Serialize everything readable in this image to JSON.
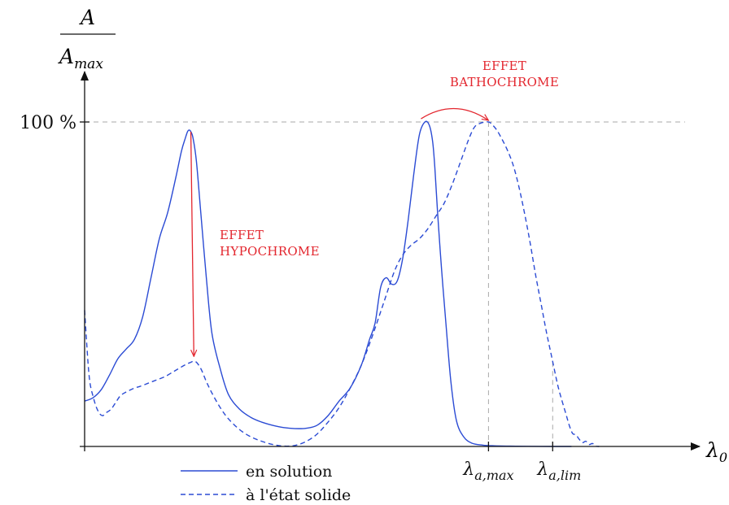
{
  "chart_data": {
    "type": "line",
    "y_axis": {
      "label_numerator": "A",
      "label_denominator": "A",
      "label_denominator_sub": "max",
      "tick_label": "100 %",
      "tick_value": 100,
      "ylim": [
        0,
        140
      ]
    },
    "x_axis": {
      "label": "λ",
      "label_sub": "0",
      "xlim": [
        0,
        100
      ],
      "ticks": [
        {
          "base": "λ",
          "sub": "a,max",
          "value": 73.0
        },
        {
          "base": "λ",
          "sub": "a,lim",
          "value": 84.6
        }
      ]
    },
    "colors": {
      "curve": "#2b4bd4",
      "annotation": "#e3262e",
      "guide": "#aaaaaa",
      "axis": "#111111"
    },
    "series": [
      {
        "name": "en solution",
        "style": "solid",
        "x": [
          0,
          1.5,
          3.0,
          4.5,
          6.0,
          7.5,
          9.0,
          10.5,
          12.0,
          13.5,
          15.0,
          16.5,
          17.5,
          18.2,
          18.6,
          18.9,
          19.2,
          19.6,
          20.2,
          21.0,
          22.0,
          23.0,
          24.5,
          26.0,
          28.0,
          30.0,
          32.0,
          34.0,
          36.0,
          38.0,
          40.0,
          42.0,
          44.0,
          46.0,
          48.0,
          50.0,
          51.5,
          52.5,
          53.5,
          54.5,
          55.5,
          56.5,
          57.5,
          58.5,
          59.5,
          60.5,
          61.5,
          62.3,
          62.9,
          63.3,
          63.8,
          64.5,
          65.3,
          66.2,
          67.2,
          68.5,
          70.0,
          72.0,
          74.0,
          77.0,
          80.0,
          85.0,
          88.0
        ],
        "y": [
          14,
          15,
          17.5,
          22,
          27,
          30,
          33,
          40,
          52,
          64,
          72,
          83,
          91,
          95,
          97,
          97.5,
          97,
          95,
          88,
          72,
          52,
          35,
          24,
          16,
          11.5,
          9,
          7.5,
          6.5,
          5.8,
          5.5,
          5.6,
          6.5,
          9.5,
          14,
          18,
          25,
          33,
          38,
          49,
          52,
          50,
          51,
          58,
          70,
          84,
          96,
          100,
          99,
          94,
          86,
          72,
          55,
          38,
          20,
          8,
          3,
          1,
          0.4,
          0.2,
          0.1,
          0.05,
          0,
          0
        ]
      },
      {
        "name": "à l'état solide",
        "style": "dashed",
        "x": [
          0,
          0.8,
          1.6,
          2.4,
          3.2,
          4.0,
          4.8,
          5.6,
          6.4,
          7.2,
          8.0,
          9.0,
          10.0,
          11.5,
          13.0,
          14.5,
          16.0,
          17.0,
          18.0,
          19.0,
          20.0,
          21.0,
          22.0,
          23.0,
          24.5,
          26.0,
          28.0,
          30.0,
          32.0,
          34.0,
          36.0,
          38.0,
          40.0,
          42.0,
          44.0,
          46.0,
          48.0,
          50.0,
          52.0,
          54.0,
          56.0,
          57.5,
          59.0,
          60.5,
          62.0,
          63.5,
          65.0,
          66.5,
          68.0,
          69.5,
          70.5,
          71.5,
          72.5,
          73.0,
          73.5,
          74.5,
          75.5,
          76.5,
          77.5,
          78.5,
          79.5,
          80.5,
          81.5,
          82.5,
          83.5,
          84.5,
          85.5,
          86.3,
          87.0,
          87.6,
          88.2,
          88.8,
          89.4,
          90.0,
          90.6,
          91.2,
          91.8,
          92.4,
          93.0
        ],
        "y": [
          42,
          22,
          15,
          11,
          9.5,
          10.5,
          11.5,
          13.5,
          15.5,
          16.5,
          17.2,
          18,
          18.5,
          19.5,
          20.5,
          21.5,
          23,
          24,
          25,
          25.8,
          26.2,
          24,
          20,
          16.5,
          12,
          8.5,
          5.2,
          3.0,
          1.6,
          0.6,
          0.1,
          0.3,
          1.5,
          3.8,
          7.5,
          12,
          18,
          25,
          34,
          44,
          54,
          59,
          62,
          64,
          67,
          71,
          75,
          81,
          88,
          95,
          98.5,
          99.6,
          100,
          100,
          99.5,
          97.5,
          94.5,
          91,
          86.5,
          80,
          72,
          63,
          53,
          44,
          35,
          27,
          19,
          14,
          10,
          6.5,
          4,
          3.6,
          2.2,
          1.2,
          1.6,
          0.6,
          0.9,
          0.1,
          0
        ]
      }
    ],
    "annotations": [
      {
        "lines": [
          "EFFET",
          "BATHOCHROME"
        ],
        "arrow_from": {
          "x": 60.8,
          "y": 102
        },
        "arrow_to": {
          "x": 73.0,
          "y": 102
        }
      },
      {
        "lines": [
          "EFFET",
          "HYPOCHROME"
        ],
        "arrow_from": {
          "x": 19.2,
          "y": 97
        },
        "arrow_to": {
          "x": 19.6,
          "y": 27
        }
      }
    ],
    "legend": {
      "placement": "bottom-left"
    }
  }
}
